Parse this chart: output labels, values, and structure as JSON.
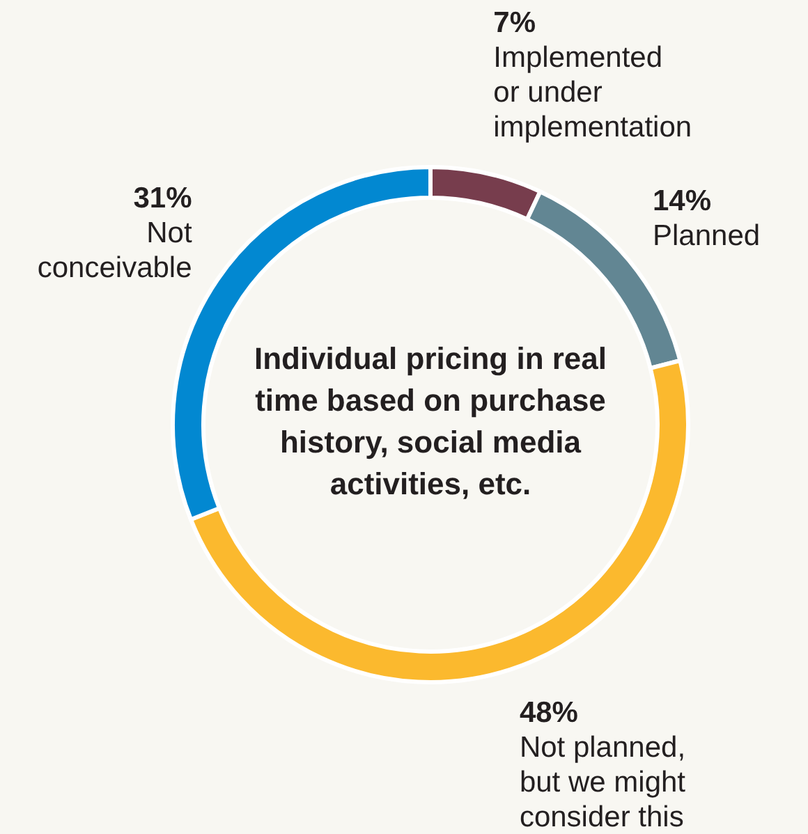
{
  "chart_data": {
    "type": "donut",
    "title": "Individual pricing in real time based on purchase history, social media activities, etc.",
    "categories": [
      "Implemented or under implementation",
      "Planned",
      "Not planned, but we might consider this",
      "Not conceivable"
    ],
    "values": [
      7,
      14,
      48,
      31
    ],
    "value_labels": [
      "7%",
      "14%",
      "48%",
      "31%"
    ],
    "colors": [
      "#773d4d",
      "#628693",
      "#fbb92e",
      "#0288d1"
    ]
  }
}
